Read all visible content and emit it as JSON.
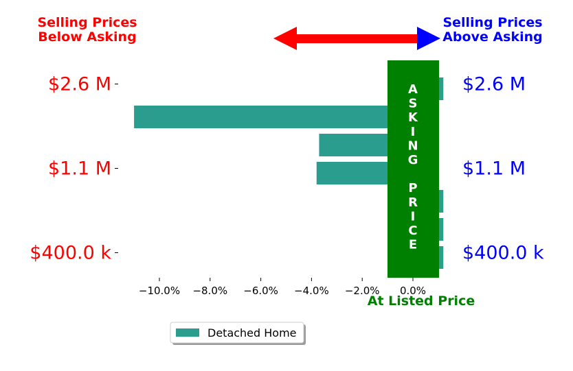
{
  "header": {
    "left_title": [
      "Selling Prices",
      "Below Asking"
    ],
    "right_title": [
      "Selling Prices",
      "Above Asking"
    ],
    "left_color": "#ff0000",
    "right_color": "#0000ff"
  },
  "asking_band": {
    "letters": [
      "A",
      "S",
      "K",
      "I",
      "N",
      "G",
      "",
      "P",
      "R",
      "I",
      "C",
      "E"
    ],
    "color": "#008000",
    "caption": "At Listed Price"
  },
  "legend": {
    "label": "Detached Home"
  },
  "chart_data": {
    "type": "bar",
    "orientation": "horizontal",
    "series": [
      {
        "name": "Detached Home",
        "color": "#2a9d8f",
        "values": [
          1.2,
          -11.0,
          -3.7,
          -3.8,
          1.2,
          1.2,
          1.2
        ]
      }
    ],
    "xlim": [
      -11.5,
      1.2
    ],
    "xticks": [
      -10.0,
      -8.0,
      -6.0,
      -4.0,
      -2.0,
      0.0
    ],
    "xtick_labels": [
      "−10.0%",
      "−8.0%",
      "−6.0%",
      "−4.0%",
      "−2.0%",
      "0.0%"
    ],
    "y_labels_left": [
      "$2.6 M",
      "$1.1 M",
      "$400.0 k"
    ],
    "y_labels_right": [
      "$2.6 M",
      "$1.1 M",
      "$400.0 k"
    ],
    "y_label_index": [
      0,
      3,
      6
    ]
  }
}
